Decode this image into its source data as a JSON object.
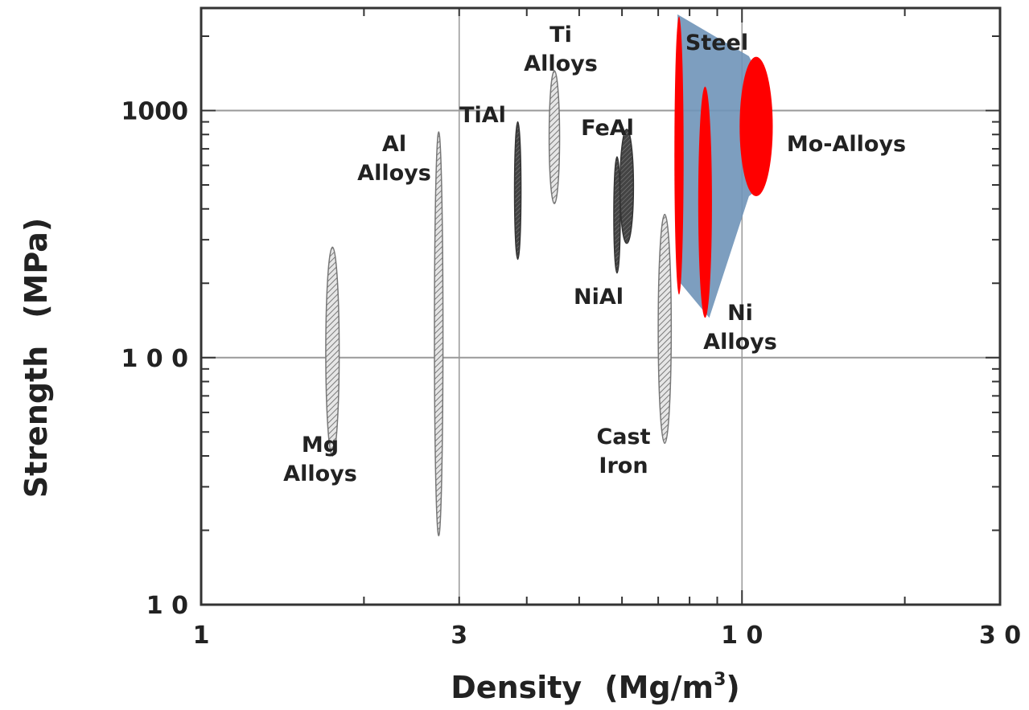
{
  "chart_data": {
    "type": "scatter",
    "title": "",
    "xlabel": "Density (Mg/m³)",
    "xlabel_main": "Density",
    "xlabel_unit": "(Mg/m",
    "xlabel_sup": "3",
    "xlabel_close": ")",
    "ylabel": "Strength (MPa)",
    "ylabel_main": "Strength",
    "ylabel_unit": "(MPa)",
    "x_scale": "log",
    "y_scale": "log",
    "xlim": [
      1,
      30
    ],
    "ylim": [
      10,
      2600
    ],
    "x_ticks": [
      "1",
      "3",
      "1 0",
      "3 0"
    ],
    "y_ticks": [
      "1 0",
      "1 0 0",
      "1000"
    ],
    "grid": "major decades",
    "legend": "none",
    "colors": {
      "highlight": "#ff0000",
      "envelope": "#6f94b8",
      "hatched": "#a8a8a8",
      "dark": "#555555",
      "axis": "#333333",
      "grid": "#999999"
    },
    "materials": [
      {
        "label": [
          "Mg",
          "Alloys"
        ],
        "density": [
          1.7,
          1.8
        ],
        "strength": [
          40,
          280
        ],
        "fill": "hatched"
      },
      {
        "label": [
          "Al",
          "Alloys"
        ],
        "density": [
          2.7,
          2.8
        ],
        "strength": [
          19,
          820
        ],
        "fill": "hatched"
      },
      {
        "label": [
          "TiAl"
        ],
        "density": [
          3.8,
          3.9
        ],
        "strength": [
          250,
          900
        ],
        "fill": "dark"
      },
      {
        "label": [
          "Ti",
          "Alloys"
        ],
        "density": [
          4.4,
          4.6
        ],
        "strength": [
          420,
          1450
        ],
        "fill": "hatched"
      },
      {
        "label": [
          "NiAl"
        ],
        "density": [
          5.8,
          5.95
        ],
        "strength": [
          220,
          650
        ],
        "fill": "dark"
      },
      {
        "label": [
          "FeAl"
        ],
        "density": [
          5.95,
          6.3
        ],
        "strength": [
          290,
          840
        ],
        "fill": "dark"
      },
      {
        "label": [
          "Cast",
          "Iron"
        ],
        "density": [
          7.0,
          7.4
        ],
        "strength": [
          45,
          380
        ],
        "fill": "hatched"
      },
      {
        "label": [
          "Steel"
        ],
        "density": [
          7.5,
          7.8
        ],
        "strength": [
          180,
          2400
        ],
        "fill": "highlight"
      },
      {
        "label": [
          "Ni",
          "Alloys"
        ],
        "density": [
          8.3,
          8.8
        ],
        "strength": [
          145,
          1250
        ],
        "fill": "highlight"
      },
      {
        "label": [
          "Mo-Alloys"
        ],
        "density": [
          9.9,
          11.4
        ],
        "strength": [
          450,
          1650
        ],
        "fill": "highlight"
      }
    ],
    "envelope": [
      [
        7.6,
        2450
      ],
      [
        10.3,
        1660
      ],
      [
        10.9,
        1300
      ],
      [
        10.9,
        500
      ],
      [
        10.3,
        450
      ],
      [
        8.7,
        145
      ],
      [
        7.7,
        200
      ]
    ]
  }
}
